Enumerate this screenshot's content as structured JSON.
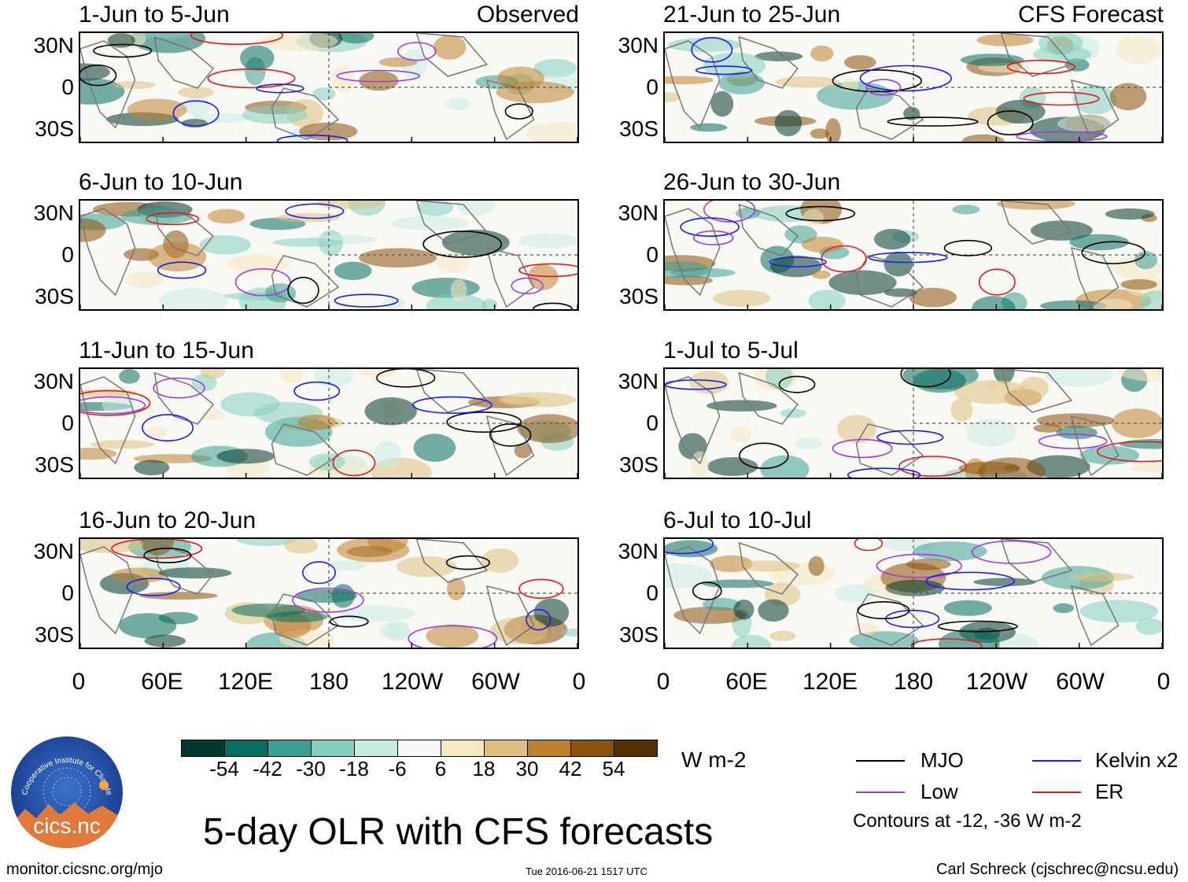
{
  "panels": [
    {
      "period": "1-Jun to 5-Jun",
      "tag": "Observed"
    },
    {
      "period": "6-Jun to 10-Jun",
      "tag": ""
    },
    {
      "period": "11-Jun to 15-Jun",
      "tag": ""
    },
    {
      "period": "16-Jun to 20-Jun",
      "tag": ""
    },
    {
      "period": "21-Jun to 25-Jun",
      "tag": "CFS Forecast"
    },
    {
      "period": "26-Jun to 30-Jun",
      "tag": ""
    },
    {
      "period": "1-Jul to 5-Jul",
      "tag": ""
    },
    {
      "period": "6-Jul to 10-Jul",
      "tag": ""
    }
  ],
  "lat_labels": [
    "30N",
    "0",
    "30S"
  ],
  "lon_labels": [
    "0",
    "60E",
    "120E",
    "180",
    "120W",
    "60W",
    "0"
  ],
  "colorbar": {
    "ticks": [
      "-54",
      "-42",
      "-30",
      "-18",
      "-6",
      "6",
      "18",
      "30",
      "42",
      "54"
    ],
    "colors": [
      "#01392e",
      "#066d5f",
      "#3a9e91",
      "#84cfbf",
      "#c8ebe2",
      "#f8f8f8",
      "#f6e8c1",
      "#dfc17f",
      "#bf812d",
      "#8c510a",
      "#553003"
    ],
    "units": "W m-2"
  },
  "legend": {
    "items": [
      {
        "label": "MJO",
        "color": "#000000"
      },
      {
        "label": "Kelvin x2",
        "color": "#1a1aff"
      },
      {
        "label": "Low",
        "color": "#a03ce6"
      },
      {
        "label": "ER",
        "color": "#e61a1a"
      }
    ],
    "note": "Contours at -12, -36 W m-2"
  },
  "title": "5-day OLR with CFS forecasts",
  "logo": {
    "text": "cics.nc",
    "arc_text": "Cooperative Institute for Climate and Satellites"
  },
  "footer": {
    "url": "monitor.cicsnc.org/mjo",
    "timestamp": "Tue 2016-06-21 1517 UTC",
    "credit": "Carl Schreck (cjschrec@ncsu.edu)"
  }
}
